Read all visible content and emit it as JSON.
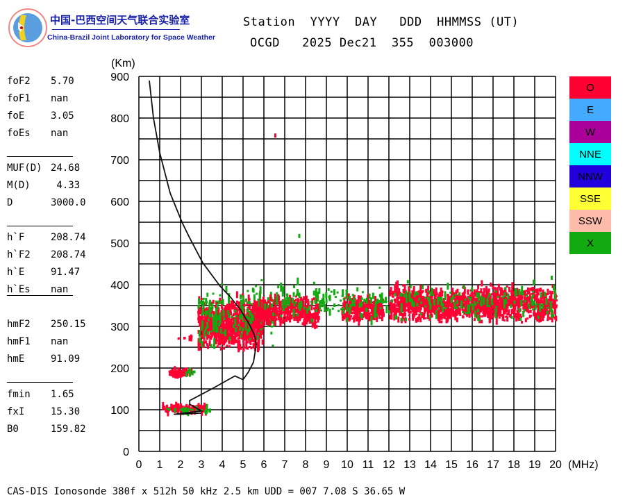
{
  "logo": {
    "title_cn": "中国-巴西空间天气联合实验室",
    "title_en": "China-Brazil Joint Laboratory for Space Weather"
  },
  "header": {
    "line1": "Station  YYYY  DAY   DDD  HHMMSS (UT)",
    "line2": "OCGD   2025 Dec21  355  003000"
  },
  "params": [
    {
      "name": "foF2",
      "value": "5.70"
    },
    {
      "name": "foF1",
      "value": "nan"
    },
    {
      "name": "foE",
      "value": "3.05"
    },
    {
      "name": "foEs",
      "value": "nan"
    },
    {
      "name": "MUF(D)",
      "value": "24.68"
    },
    {
      "name": "M(D)",
      "value": " 4.33"
    },
    {
      "name": "D",
      "value": "3000.0"
    },
    {
      "name": "h`F",
      "value": "208.74"
    },
    {
      "name": "h`F2",
      "value": "208.74"
    },
    {
      "name": "h`E",
      "value": "91.47"
    },
    {
      "name": "h`Es",
      "value": "nan"
    },
    {
      "name": "hmF2",
      "value": "250.15"
    },
    {
      "name": "hmF1",
      "value": "nan"
    },
    {
      "name": "hmE",
      "value": "91.09"
    },
    {
      "name": "fmin",
      "value": "1.65"
    },
    {
      "name": "fxI",
      "value": "15.30"
    },
    {
      "name": "B0",
      "value": "159.82"
    }
  ],
  "legend": [
    {
      "label": "O",
      "color": "#ff0033"
    },
    {
      "label": "E",
      "color": "#44aaff"
    },
    {
      "label": "W",
      "color": "#aa0099"
    },
    {
      "label": "NNE",
      "color": "#00ffff"
    },
    {
      "label": "NNW",
      "color": "#2200dd"
    },
    {
      "label": "SSE",
      "color": "#ffff33"
    },
    {
      "label": "SSW",
      "color": "#ffbbaa"
    },
    {
      "label": "X",
      "color": "#11aa11"
    }
  ],
  "footer": "CAS-DIS Ionosonde 380f x 512h 50 kHz 2.5 km UDD = 007 7.08 S 36.65 W",
  "chart_data": {
    "type": "scatter",
    "title": "",
    "xlabel": "(MHz)",
    "ylabel": "(Km)",
    "xlim": [
      0,
      20
    ],
    "ylim": [
      0,
      900
    ],
    "xticks": [
      0,
      1,
      2,
      3,
      4,
      5,
      6,
      7,
      8,
      9,
      10,
      11,
      12,
      13,
      14,
      15,
      16,
      17,
      18,
      19,
      20
    ],
    "yticks": [
      0,
      100,
      200,
      300,
      400,
      500,
      600,
      700,
      800,
      900
    ],
    "grid": true,
    "echo_clusters": [
      {
        "mode": "O",
        "x": [
          1.1,
          3.2
        ],
        "y": [
          90,
          118
        ],
        "n": 120
      },
      {
        "mode": "X",
        "x": [
          1.3,
          3.4
        ],
        "y": [
          90,
          112
        ],
        "n": 25
      },
      {
        "mode": "O",
        "x": [
          1.4,
          2.6
        ],
        "y": [
          180,
          198
        ],
        "n": 60
      },
      {
        "mode": "X",
        "x": [
          2.2,
          2.7
        ],
        "y": [
          180,
          205
        ],
        "n": 8
      },
      {
        "mode": "O",
        "x": [
          1.8,
          2.6
        ],
        "y": [
          268,
          278
        ],
        "n": 10
      },
      {
        "mode": "O",
        "x": [
          2.8,
          5.9
        ],
        "y": [
          228,
          400
        ],
        "n": 900
      },
      {
        "mode": "X",
        "x": [
          2.8,
          6.5
        ],
        "y": [
          225,
          450
        ],
        "n": 180
      },
      {
        "mode": "O",
        "x": [
          5.5,
          8.6
        ],
        "y": [
          290,
          395
        ],
        "n": 350
      },
      {
        "mode": "O",
        "x": [
          9.7,
          11.7
        ],
        "y": [
          300,
          395
        ],
        "n": 260
      },
      {
        "mode": "O",
        "x": [
          12.0,
          20.0
        ],
        "y": [
          300,
          420
        ],
        "n": 1300
      },
      {
        "mode": "X",
        "x": [
          6.0,
          20.0
        ],
        "y": [
          300,
          440
        ],
        "n": 300
      }
    ],
    "isolated_echoes": [
      {
        "mode": "O",
        "x": 6.5,
        "y": 758
      },
      {
        "mode": "X",
        "x": 7.65,
        "y": 517
      }
    ],
    "profile_curve": [
      [
        0.5,
        890
      ],
      [
        0.7,
        800
      ],
      [
        1.0,
        717
      ],
      [
        1.5,
        620
      ],
      [
        2.07,
        550
      ],
      [
        2.39,
        517
      ],
      [
        3.06,
        453
      ],
      [
        3.89,
        397
      ],
      [
        4.4,
        370
      ],
      [
        4.89,
        339
      ],
      [
        5.3,
        305
      ],
      [
        5.56,
        278
      ],
      [
        5.63,
        255
      ],
      [
        5.5,
        214
      ],
      [
        5.25,
        190
      ],
      [
        5.0,
        172
      ],
      [
        4.61,
        181
      ],
      [
        3.5,
        150
      ],
      [
        2.44,
        122
      ],
      [
        2.44,
        113
      ],
      [
        3.0,
        97
      ],
      [
        1.67,
        89
      ],
      [
        3.0,
        92
      ]
    ]
  }
}
